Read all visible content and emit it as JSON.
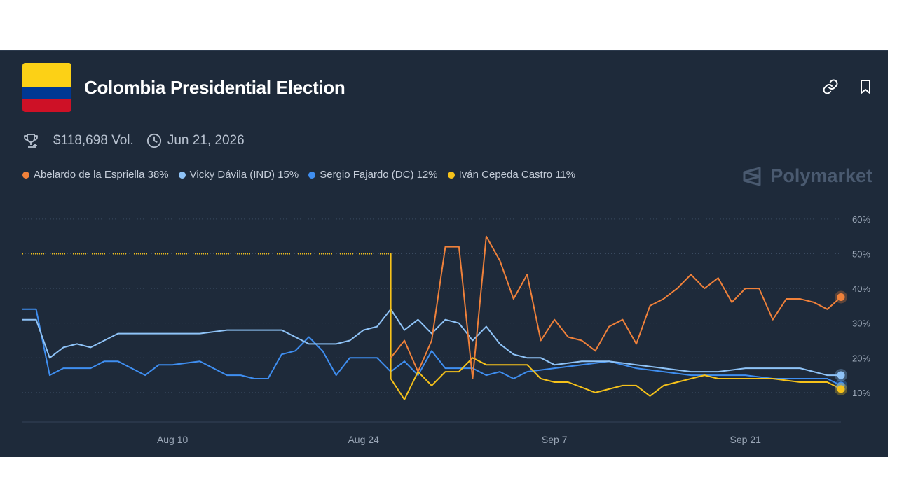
{
  "market": {
    "title": "Colombia Presidential Election",
    "volume": "$118,698 Vol.",
    "end_date": "Jun 21, 2026",
    "brand": "Polymarket"
  },
  "colors": {
    "background": "#1e2a3a",
    "flag_yellow": "#fcd116",
    "flag_blue": "#003893",
    "flag_red": "#ce1126"
  },
  "icons": {
    "link": "link-icon",
    "bookmark": "bookmark-icon",
    "trophy": "trophy-icon",
    "clock": "clock-icon",
    "brand": "polymarket-logo-icon"
  },
  "legend": [
    {
      "label": "Abelardo de la Espriella 38%",
      "color": "#f0813a"
    },
    {
      "label": "Vicky Dávila (IND) 15%",
      "color": "#8fc3f7"
    },
    {
      "label": "Sergio Fajardo (DC) 12%",
      "color": "#3f8ef0"
    },
    {
      "label": "Iván Cepeda Castro 11%",
      "color": "#f6c21a"
    }
  ],
  "chart_data": {
    "type": "line",
    "x_range": [
      "Jul 30",
      "Sep 28"
    ],
    "x_ticks": [
      "Aug 10",
      "Aug 24",
      "Sep 7",
      "Sep 21"
    ],
    "y_ticks": [
      "10%",
      "20%",
      "30%",
      "40%",
      "50%",
      "60%"
    ],
    "ylim": [
      1.5,
      62
    ],
    "y_axis_side": "right",
    "grid": "horizontal dotted",
    "series": [
      {
        "name": "Abelardo de la Espriella",
        "color": "#f0813a",
        "start": "Aug 26",
        "end_marker": true,
        "x": [
          "Aug 26",
          "Aug 27",
          "Aug 28",
          "Aug 29",
          "Aug 30",
          "Aug 31",
          "Sep 1",
          "Sep 2",
          "Sep 3",
          "Sep 4",
          "Sep 5",
          "Sep 6",
          "Sep 7",
          "Sep 8",
          "Sep 9",
          "Sep 10",
          "Sep 11",
          "Sep 12",
          "Sep 13",
          "Sep 14",
          "Sep 15",
          "Sep 16",
          "Sep 17",
          "Sep 18",
          "Sep 19",
          "Sep 20",
          "Sep 21",
          "Sep 22",
          "Sep 23",
          "Sep 24",
          "Sep 25",
          "Sep 26",
          "Sep 27",
          "Sep 28"
        ],
        "y": [
          20,
          25,
          16,
          25,
          52,
          52,
          14,
          55,
          48,
          37,
          44,
          25,
          31,
          26,
          25,
          22,
          29,
          31,
          24,
          35,
          37,
          40,
          44,
          40,
          43,
          36,
          40,
          40,
          31,
          37,
          37,
          36,
          34,
          37.5
        ]
      },
      {
        "name": "Vicky Dávila (IND)",
        "color": "#8fc3f7",
        "start": "Jul 30",
        "end_marker": true,
        "x": [
          "Jul 30",
          "Jul 31",
          "Aug 1",
          "Aug 2",
          "Aug 3",
          "Aug 4",
          "Aug 6",
          "Aug 8",
          "Aug 10",
          "Aug 12",
          "Aug 14",
          "Aug 16",
          "Aug 18",
          "Aug 20",
          "Aug 22",
          "Aug 23",
          "Aug 24",
          "Aug 25",
          "Aug 26",
          "Aug 27",
          "Aug 28",
          "Aug 29",
          "Aug 30",
          "Aug 31",
          "Sep 1",
          "Sep 2",
          "Sep 3",
          "Sep 4",
          "Sep 5",
          "Sep 6",
          "Sep 7",
          "Sep 9",
          "Sep 11",
          "Sep 13",
          "Sep 15",
          "Sep 17",
          "Sep 19",
          "Sep 21",
          "Sep 23",
          "Sep 25",
          "Sep 27",
          "Sep 28"
        ],
        "y": [
          31,
          31,
          20,
          23,
          24,
          23,
          27,
          27,
          27,
          27,
          28,
          28,
          28,
          24,
          24,
          25,
          28,
          29,
          34,
          28,
          31,
          27,
          31,
          30,
          25,
          29,
          24,
          21,
          20,
          20,
          18,
          19,
          19,
          18,
          17,
          16,
          16,
          17,
          17,
          17,
          15,
          15
        ]
      },
      {
        "name": "Sergio Fajardo (DC)",
        "color": "#3f8ef0",
        "start": "Jul 30",
        "end_marker": true,
        "x": [
          "Jul 30",
          "Jul 31",
          "Aug 1",
          "Aug 2",
          "Aug 4",
          "Aug 5",
          "Aug 6",
          "Aug 8",
          "Aug 9",
          "Aug 10",
          "Aug 12",
          "Aug 14",
          "Aug 15",
          "Aug 16",
          "Aug 17",
          "Aug 18",
          "Aug 19",
          "Aug 20",
          "Aug 21",
          "Aug 22",
          "Aug 23",
          "Aug 24",
          "Aug 25",
          "Aug 26",
          "Aug 27",
          "Aug 28",
          "Aug 29",
          "Aug 30",
          "Aug 31",
          "Sep 1",
          "Sep 2",
          "Sep 3",
          "Sep 4",
          "Sep 5",
          "Sep 7",
          "Sep 9",
          "Sep 11",
          "Sep 13",
          "Sep 15",
          "Sep 17",
          "Sep 19",
          "Sep 21",
          "Sep 23",
          "Sep 25",
          "Sep 27",
          "Sep 28"
        ],
        "y": [
          34,
          34,
          15,
          17,
          17,
          19,
          19,
          15,
          18,
          18,
          19,
          15,
          15,
          14,
          14,
          21,
          22,
          26,
          22,
          15,
          20,
          20,
          20,
          16,
          19,
          15,
          22,
          17,
          17,
          17,
          15,
          16,
          14,
          16,
          17,
          18,
          19,
          17,
          16,
          15,
          15,
          15,
          14,
          14,
          14,
          12
        ]
      },
      {
        "name": "Iván Cepeda Castro",
        "color": "#f6c21a",
        "start": "Jul 30",
        "end_marker": true,
        "x": [
          "Jul 30",
          "Aug 26",
          "Aug 26",
          "Aug 27",
          "Aug 28",
          "Aug 29",
          "Aug 30",
          "Aug 31",
          "Sep 1",
          "Sep 2",
          "Sep 3",
          "Sep 4",
          "Sep 5",
          "Sep 6",
          "Sep 7",
          "Sep 8",
          "Sep 10",
          "Sep 12",
          "Sep 13",
          "Sep 14",
          "Sep 15",
          "Sep 16",
          "Sep 17",
          "Sep 18",
          "Sep 19",
          "Sep 20",
          "Sep 21",
          "Sep 23",
          "Sep 25",
          "Sep 27",
          "Sep 28"
        ],
        "y": [
          50,
          50,
          14,
          8,
          16,
          12,
          16,
          16,
          20,
          18,
          18,
          18,
          18,
          14,
          13,
          13,
          10,
          12,
          12,
          9,
          12,
          13,
          14,
          15,
          14,
          14,
          14,
          14,
          13,
          13,
          11
        ]
      }
    ]
  }
}
